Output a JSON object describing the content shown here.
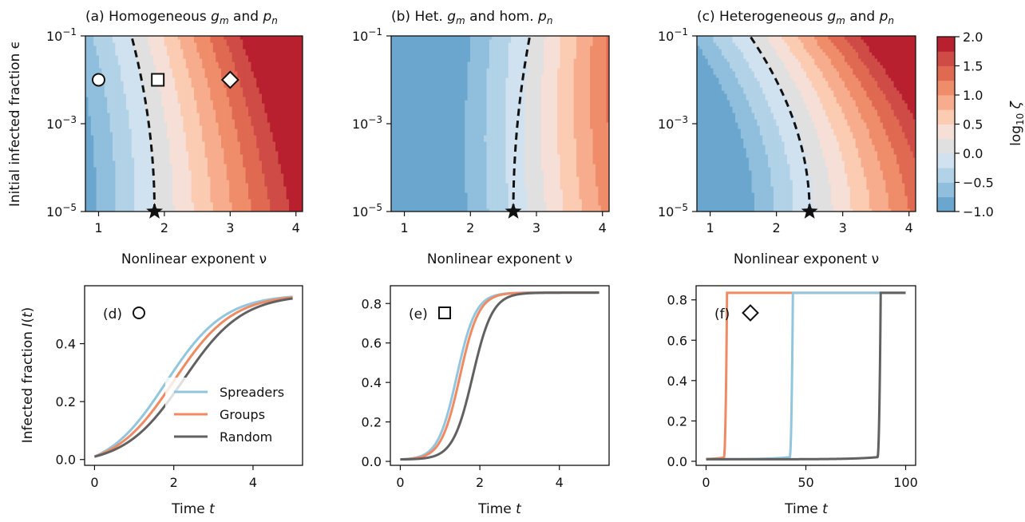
{
  "chart_data": [
    {
      "id": "a",
      "type": "heatmap",
      "title": "(a) Homogeneous g_m and p_n",
      "title_parts": [
        "(a) Homogeneous ",
        "g",
        "m",
        " and ",
        "p",
        "n"
      ],
      "xlabel": "Nonlinear exponent ν",
      "ylabel": "Initial infected fraction ϵ",
      "xlim": [
        0.8,
        4.1
      ],
      "ylim": [
        -5,
        -1
      ],
      "y_scale": "log10",
      "xticks": [
        "1",
        "2",
        "3",
        "4"
      ],
      "yticks": [
        {
          "base": "10",
          "exp": "−1"
        },
        {
          "base": "10",
          "exp": "−3"
        },
        {
          "base": "10",
          "exp": "−5"
        }
      ],
      "boundary_nu": 1.85,
      "boundary_bend": -0.35,
      "shift": 0.0,
      "critical_star": {
        "x": 1.85,
        "y": -5
      },
      "markers": [
        {
          "shape": "circle",
          "x": 1.0,
          "y": -2
        },
        {
          "shape": "square",
          "x": 1.9,
          "y": -2
        },
        {
          "shape": "diamond",
          "x": 3.0,
          "y": -2
        }
      ]
    },
    {
      "id": "b",
      "type": "heatmap",
      "title": "(b) Het. g_m and hom. p_n",
      "title_parts": [
        "(b) Het. ",
        "g",
        "m",
        " and hom. ",
        "p",
        "n"
      ],
      "xlabel": "Nonlinear exponent ν",
      "xlim": [
        0.8,
        4.1
      ],
      "ylim": [
        -5,
        -1
      ],
      "y_scale": "log10",
      "xticks": [
        "1",
        "2",
        "3",
        "4"
      ],
      "yticks": [
        {
          "base": "10",
          "exp": "−1"
        },
        {
          "base": "10",
          "exp": "−3"
        },
        {
          "base": "10",
          "exp": "−5"
        }
      ],
      "boundary_nu": 2.65,
      "boundary_bend": 0.25,
      "shift": -0.2,
      "critical_star": {
        "x": 2.65,
        "y": -5
      },
      "markers": []
    },
    {
      "id": "c",
      "type": "heatmap",
      "title": "(c) Heterogeneous g_m and p_n",
      "title_parts": [
        "(c) Heterogeneous ",
        "g",
        "m",
        " and ",
        "p",
        "n"
      ],
      "xlabel": "Nonlinear exponent ν",
      "xlim": [
        0.8,
        4.1
      ],
      "ylim": [
        -5,
        -1
      ],
      "y_scale": "log10",
      "xticks": [
        "1",
        "2",
        "3",
        "4"
      ],
      "yticks": [
        {
          "base": "10",
          "exp": "−1"
        },
        {
          "base": "10",
          "exp": "−3"
        },
        {
          "base": "10",
          "exp": "−5"
        }
      ],
      "boundary_nu": 2.5,
      "boundary_bend": -0.9,
      "shift": -0.05,
      "critical_star": {
        "x": 2.5,
        "y": -5
      },
      "markers": []
    },
    {
      "id": "colorbar",
      "type": "colorbar",
      "label": "log10 ζ",
      "label_parts": [
        "log",
        "10",
        " ζ"
      ],
      "range": [
        -1.0,
        2.0
      ],
      "ticks": [
        "2.0",
        "1.5",
        "1.0",
        "0.5",
        "0.0",
        "−0.5",
        "−1.0"
      ],
      "levels": [
        -1.0,
        -0.75,
        -0.5,
        -0.25,
        0.0,
        0.25,
        0.5,
        0.75,
        1.0,
        1.25,
        1.5,
        1.75,
        2.0
      ],
      "colors": [
        "#6aa6cd",
        "#8fbfdc",
        "#b1d2e7",
        "#d0e2ef",
        "#e0e0e0",
        "#f5dfd6",
        "#fbcbb2",
        "#f7ad8d",
        "#ef8c69",
        "#e06952",
        "#cf4b46",
        "#b8202f"
      ]
    },
    {
      "id": "d",
      "type": "line",
      "label": "(d)",
      "marker": "circle",
      "ylabel": "Infected fraction I(t)",
      "ylabel_parts": [
        "Infected fraction ",
        "I",
        "(",
        "t",
        ")"
      ],
      "xlabel": "Time t",
      "xlabel_parts": [
        "Time ",
        "t"
      ],
      "xlim": [
        -0.25,
        5.25
      ],
      "ylim": [
        -0.02,
        0.6
      ],
      "xticks": [
        0,
        2,
        4
      ],
      "yticks": [
        0.0,
        0.2,
        0.4
      ],
      "ytick_labels": [
        "0.0",
        "0.2",
        "0.4"
      ],
      "t_end": 5,
      "series": [
        {
          "name": "Spreaders",
          "color": "#92c5de",
          "model": "logistic",
          "K": 0.57,
          "r": 1.35,
          "t0": 1.8,
          "y0": 0.01
        },
        {
          "name": "Groups",
          "color": "#ef8a62",
          "model": "logistic",
          "K": 0.57,
          "r": 1.35,
          "t0": 2.0,
          "y0": 0.01
        },
        {
          "name": "Random",
          "color": "#616161",
          "model": "logistic",
          "K": 0.57,
          "r": 1.35,
          "t0": 2.25,
          "y0": 0.01
        }
      ],
      "legend": {
        "position": "lower right",
        "entries": [
          "Spreaders",
          "Groups",
          "Random"
        ]
      }
    },
    {
      "id": "e",
      "type": "line",
      "label": "(e)",
      "marker": "square",
      "xlabel": "Time t",
      "xlabel_parts": [
        "Time ",
        "t"
      ],
      "xlim": [
        -0.25,
        5.25
      ],
      "ylim": [
        -0.02,
        0.89
      ],
      "xticks": [
        0,
        2,
        4
      ],
      "yticks": [
        0.0,
        0.2,
        0.4,
        0.6,
        0.8
      ],
      "ytick_labels": [
        "0.0",
        "0.2",
        "0.4",
        "0.6",
        "0.8"
      ],
      "t_end": 5,
      "series": [
        {
          "name": "Spreaders",
          "color": "#92c5de",
          "model": "logistic",
          "K": 0.855,
          "r": 4.2,
          "t0": 1.42,
          "y0": 0.01
        },
        {
          "name": "Groups",
          "color": "#ef8a62",
          "model": "logistic",
          "K": 0.855,
          "r": 4.2,
          "t0": 1.5,
          "y0": 0.01
        },
        {
          "name": "Random",
          "color": "#616161",
          "model": "logistic",
          "K": 0.855,
          "r": 4.0,
          "t0": 1.82,
          "y0": 0.01
        }
      ]
    },
    {
      "id": "f",
      "type": "line",
      "label": "(f)",
      "marker": "diamond",
      "xlabel": "Time t",
      "xlabel_parts": [
        "Time ",
        "t"
      ],
      "xlim": [
        -5,
        105
      ],
      "ylim": [
        -0.02,
        0.87
      ],
      "xticks": [
        0,
        50,
        100
      ],
      "yticks": [
        0.0,
        0.2,
        0.4,
        0.6,
        0.8
      ],
      "ytick_labels": [
        "0.0",
        "0.2",
        "0.4",
        "0.6",
        "0.8"
      ],
      "t_end": 100,
      "series": [
        {
          "name": "Groups",
          "color": "#ef8a62",
          "model": "blowup",
          "tc": 10.5,
          "tau": 5,
          "K": 0.835,
          "y0": 0.01
        },
        {
          "name": "Spreaders",
          "color": "#92c5de",
          "model": "blowup",
          "tc": 43.5,
          "tau": 10,
          "K": 0.835,
          "y0": 0.01
        },
        {
          "name": "Random",
          "color": "#616161",
          "model": "blowup",
          "tc": 87.5,
          "tau": 12,
          "K": 0.835,
          "y0": 0.01
        }
      ]
    }
  ]
}
